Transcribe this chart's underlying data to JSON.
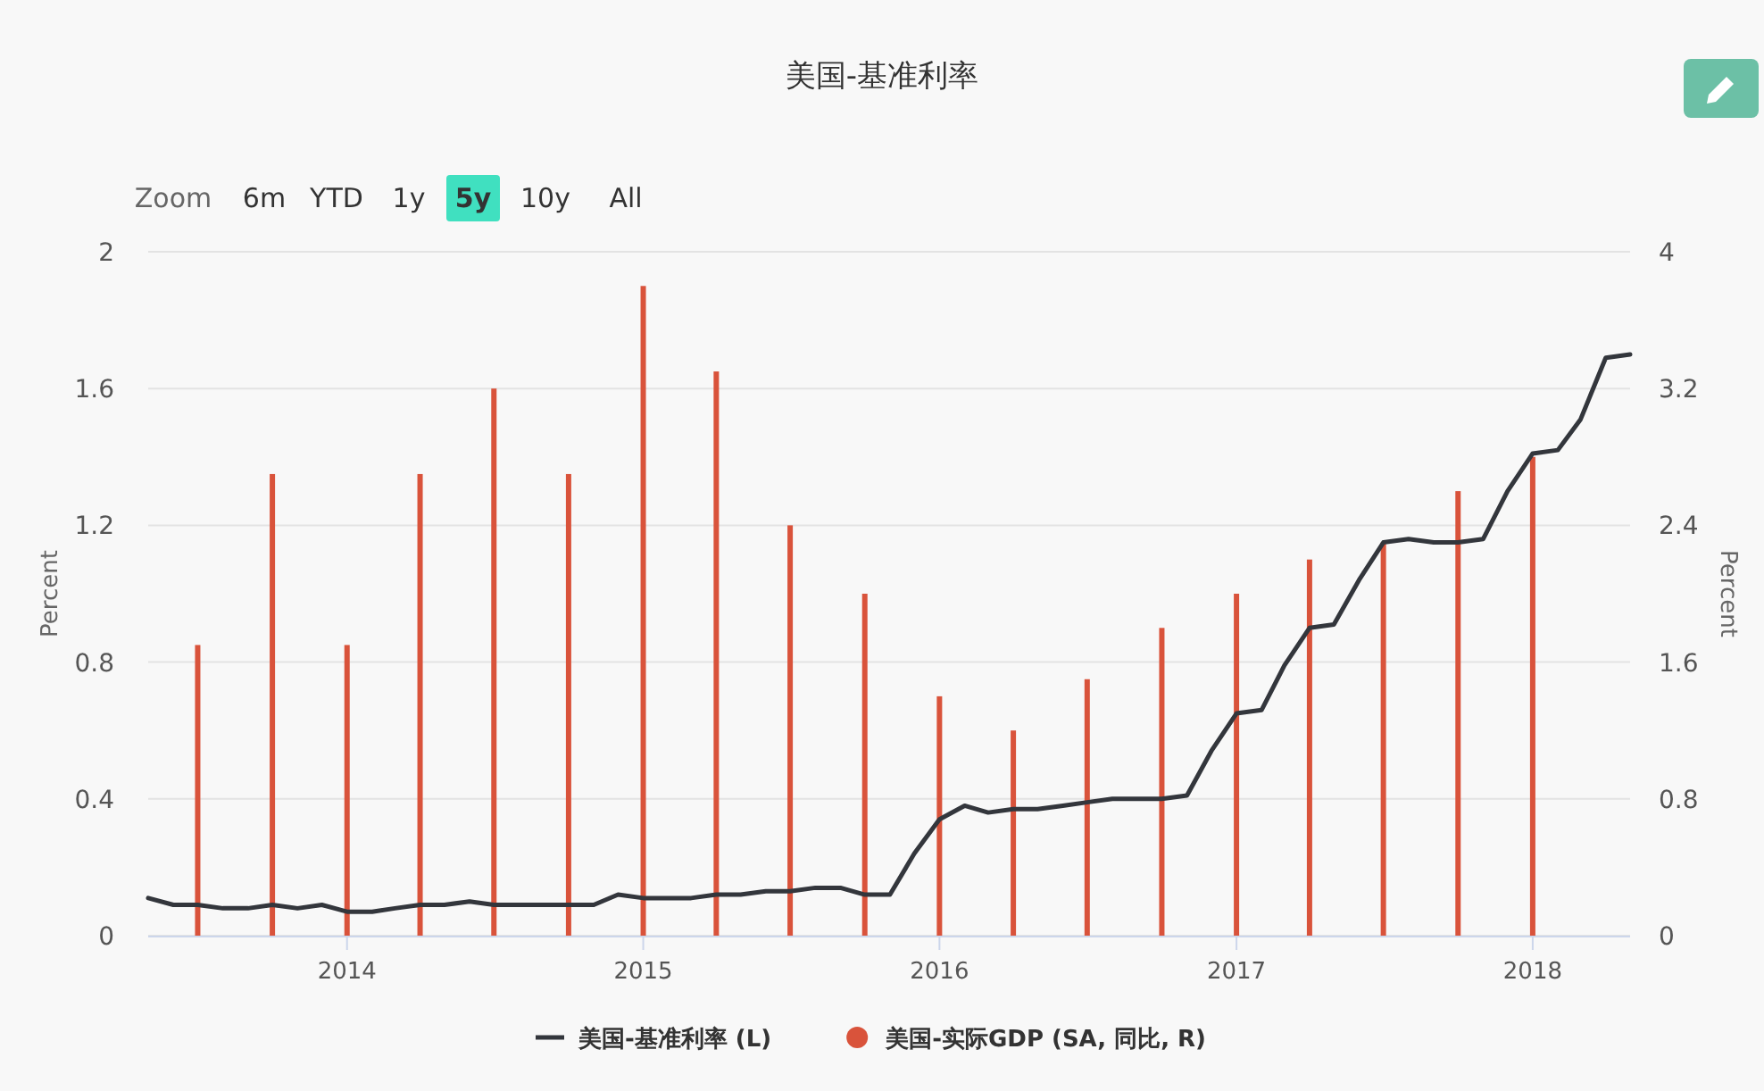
{
  "chart_data": {
    "type": "line",
    "title": "美国-基准利率",
    "annotations": [
      "Zoom",
      "6m",
      "YTD",
      "1y",
      "5y",
      "10y",
      "All"
    ],
    "ylabel": "Percent",
    "y2label": "Percent",
    "xlim": [
      "2013-05",
      "2018-05"
    ],
    "xticks": [
      {
        "value": "2014-01",
        "label": "2014"
      },
      {
        "value": "2015-01",
        "label": "2015"
      },
      {
        "value": "2016-01",
        "label": "2016"
      },
      {
        "value": "2017-01",
        "label": "2017"
      },
      {
        "value": "2018-01",
        "label": "2018"
      }
    ],
    "ylim": [
      0,
      2
    ],
    "yticks": [
      0,
      0.4,
      0.8,
      1.2,
      1.6,
      2
    ],
    "y2lim": [
      0,
      4
    ],
    "y2ticks": [
      0,
      0.8,
      1.6,
      2.4,
      3.2,
      4
    ],
    "grid": "y",
    "legend": "bottom",
    "marker": "none",
    "series": [
      {
        "name": "美国-基准利率 (L)",
        "color": "#33363c",
        "x": [
          "2013-05",
          "2013-06",
          "2013-07",
          "2013-08",
          "2013-09",
          "2013-10",
          "2013-11",
          "2013-12",
          "2014-01",
          "2014-02",
          "2014-03",
          "2014-04",
          "2014-05",
          "2014-06",
          "2014-07",
          "2014-08",
          "2014-09",
          "2014-10",
          "2014-11",
          "2014-12",
          "2015-01",
          "2015-02",
          "2015-03",
          "2015-04",
          "2015-05",
          "2015-06",
          "2015-07",
          "2015-08",
          "2015-09",
          "2015-10",
          "2015-11",
          "2015-12",
          "2016-01",
          "2016-02",
          "2016-03",
          "2016-04",
          "2016-05",
          "2016-06",
          "2016-07",
          "2016-08",
          "2016-09",
          "2016-10",
          "2016-11",
          "2016-12",
          "2017-01",
          "2017-02",
          "2017-03",
          "2017-04",
          "2017-05",
          "2017-06",
          "2017-07",
          "2017-08",
          "2017-09",
          "2017-10",
          "2017-11",
          "2017-12",
          "2018-01",
          "2018-02",
          "2018-03",
          "2018-04",
          "2018-05"
        ],
        "values": [
          0.11,
          0.09,
          0.09,
          0.08,
          0.08,
          0.09,
          0.08,
          0.09,
          0.07,
          0.07,
          0.08,
          0.09,
          0.09,
          0.1,
          0.09,
          0.09,
          0.09,
          0.09,
          0.09,
          0.12,
          0.11,
          0.11,
          0.11,
          0.12,
          0.12,
          0.13,
          0.13,
          0.14,
          0.14,
          0.12,
          0.12,
          0.24,
          0.34,
          0.38,
          0.36,
          0.37,
          0.37,
          0.38,
          0.39,
          0.4,
          0.4,
          0.4,
          0.41,
          0.54,
          0.65,
          0.66,
          0.79,
          0.9,
          0.91,
          1.04,
          1.15,
          1.16,
          1.15,
          1.15,
          1.16,
          1.3,
          1.41,
          1.42,
          1.51,
          1.69,
          1.7
        ]
      },
      {
        "name": "美国-实际GDP (SA, 同比, R)",
        "type": "bar",
        "axis": "y2",
        "color": "#d9533b",
        "x": [
          "2013-07",
          "2013-10",
          "2014-01",
          "2014-04",
          "2014-07",
          "2014-10",
          "2015-01",
          "2015-04",
          "2015-07",
          "2015-10",
          "2016-01",
          "2016-04",
          "2016-07",
          "2016-10",
          "2017-01",
          "2017-04",
          "2017-07",
          "2017-10",
          "2018-01"
        ],
        "values": [
          1.7,
          2.7,
          1.7,
          2.7,
          3.2,
          2.7,
          3.8,
          3.3,
          2.4,
          2.0,
          1.4,
          1.2,
          1.5,
          1.8,
          2.0,
          2.2,
          2.3,
          2.6,
          2.8
        ]
      }
    ]
  }
}
